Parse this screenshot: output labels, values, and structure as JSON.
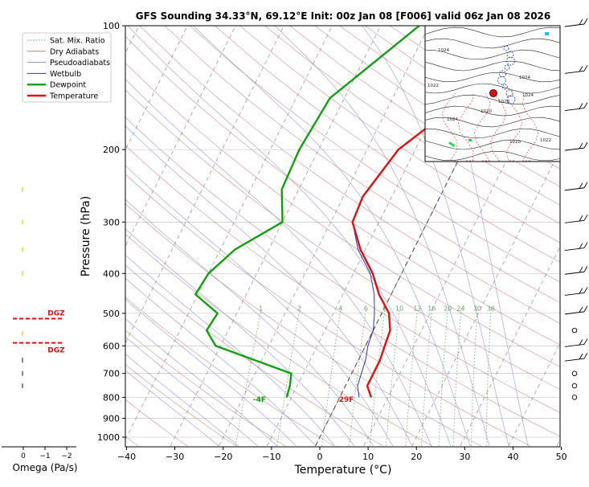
{
  "chart_data": {
    "type": "line",
    "title": "GFS Sounding 34.33°N, 69.12°E Init: 00z Jan 08 [F006] valid 06z Jan 08 2026",
    "xlabel": "Temperature (°C)",
    "ylabel": "Pressure (hPa)",
    "xlim": [
      -40,
      50
    ],
    "x_ticks": [
      "−40",
      "−30",
      "−20",
      "−10",
      "0",
      "10",
      "20",
      "30",
      "40",
      "50"
    ],
    "y_ticks": [
      "100",
      "200",
      "300",
      "400",
      "500",
      "600",
      "700",
      "800",
      "900",
      "1000"
    ],
    "y_scale": "log",
    "grid": true,
    "legend_position": "top-left",
    "legend": [
      {
        "label": "Sat. Mix. Ratio",
        "color": "#6aa06a"
      },
      {
        "label": "Dry Adiabats",
        "color": "#c08080"
      },
      {
        "label": "Pseudoadiabats",
        "color": "#9090c8"
      },
      {
        "label": "Wetbulb",
        "color": "#3030d0"
      },
      {
        "label": "Dewpoint",
        "color": "#10a010"
      },
      {
        "label": "Temperature",
        "color": "#e01010"
      }
    ],
    "mixing_ratio_labels": [
      "1",
      "2",
      "4",
      "6",
      "8",
      "10",
      "13",
      "16",
      "20",
      "24",
      "30",
      "36"
    ],
    "series": [
      {
        "name": "Temperature",
        "color": "#e01010",
        "points": [
          [
            2.5,
            100
          ],
          [
            -5,
            150
          ],
          [
            -13.5,
            200
          ],
          [
            -16,
            260
          ],
          [
            -15.5,
            300
          ],
          [
            -11,
            350
          ],
          [
            -6,
            400
          ],
          [
            -2.5,
            450
          ],
          [
            1.5,
            500
          ],
          [
            3.5,
            550
          ],
          [
            4,
            600
          ],
          [
            4.5,
            650
          ],
          [
            4.5,
            700
          ],
          [
            4.5,
            750
          ],
          [
            6.5,
            800
          ]
        ]
      },
      {
        "name": "Dewpoint",
        "color": "#10a010",
        "points": [
          [
            -22,
            100
          ],
          [
            -33,
            150
          ],
          [
            -34,
            200
          ],
          [
            -33.5,
            250
          ],
          [
            -30,
            300
          ],
          [
            -37,
            350
          ],
          [
            -40,
            400
          ],
          [
            -40.5,
            450
          ],
          [
            -34,
            500
          ],
          [
            -34.5,
            550
          ],
          [
            -31,
            600
          ],
          [
            -12.5,
            700
          ],
          [
            -11.5,
            750
          ],
          [
            -11,
            800
          ]
        ]
      },
      {
        "name": "Wetbulb",
        "color": "#3030d0",
        "points": [
          [
            -15.5,
            300
          ],
          [
            -11.5,
            350
          ],
          [
            -6.5,
            400
          ],
          [
            -3.5,
            450
          ],
          [
            -1.5,
            500
          ],
          [
            0,
            550
          ],
          [
            0.5,
            600
          ],
          [
            1.5,
            650
          ],
          [
            2,
            700
          ],
          [
            2.5,
            750
          ],
          [
            4,
            800
          ]
        ]
      }
    ],
    "surface_labels": {
      "dewpoint": "-4F",
      "temperature": "29F"
    },
    "omega": {
      "xlabel": "Omega (Pa/s)",
      "x_ticks": [
        "0",
        "−1",
        "−2"
      ],
      "dgz_label": "DGZ",
      "dgz_levels": [
        515,
        590
      ]
    },
    "wind_barbs": [
      {
        "p": 100,
        "kind": "barb"
      },
      {
        "p": 130,
        "kind": "barb"
      },
      {
        "p": 160,
        "kind": "barb"
      },
      {
        "p": 200,
        "kind": "barb"
      },
      {
        "p": 250,
        "kind": "barb"
      },
      {
        "p": 300,
        "kind": "barb"
      },
      {
        "p": 350,
        "kind": "barb"
      },
      {
        "p": 400,
        "kind": "barb"
      },
      {
        "p": 450,
        "kind": "barb"
      },
      {
        "p": 500,
        "kind": "barb"
      },
      {
        "p": 550,
        "kind": "calm"
      },
      {
        "p": 600,
        "kind": "barb"
      },
      {
        "p": 650,
        "kind": "barb"
      },
      {
        "p": 700,
        "kind": "calm"
      },
      {
        "p": 750,
        "kind": "calm"
      },
      {
        "p": 800,
        "kind": "calm"
      }
    ],
    "inset_map_labels": [
      "1024",
      "1022",
      "1020",
      "1024",
      "1026",
      "1024",
      "1020",
      "1022",
      "1024"
    ]
  }
}
